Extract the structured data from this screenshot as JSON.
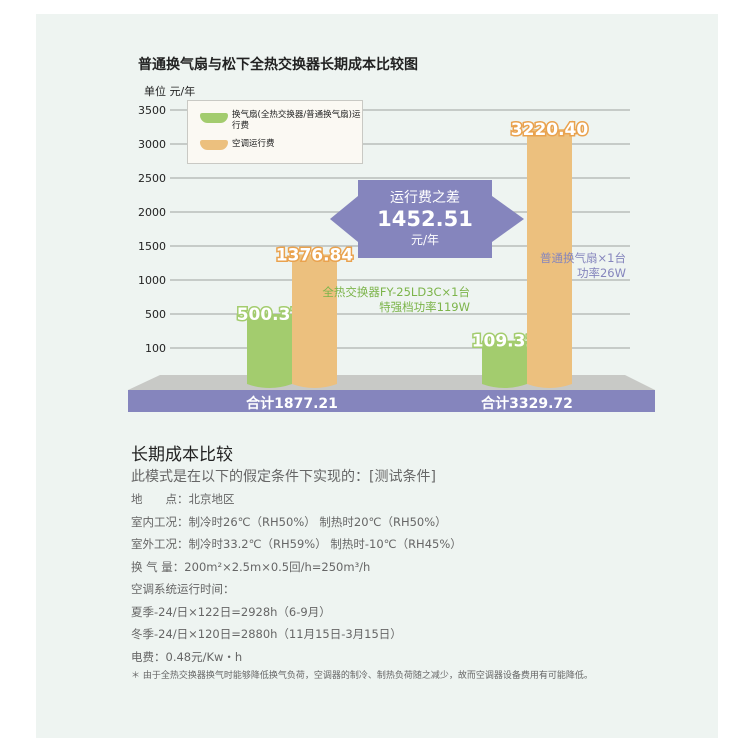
{
  "chart_data": {
    "type": "bar",
    "title": "普通换气扇与松下全热交换器长期成本比较图",
    "ylabel": "单位 元/年",
    "ytick_labels": [
      "3500",
      "3000",
      "2500",
      "2000",
      "1500",
      "1000",
      "500",
      "100"
    ],
    "ylim": [
      0,
      3500
    ],
    "grid": true,
    "legend_placement": "top-left",
    "legend": [
      "换气扇(全热交换器/普通换气扇)运行费",
      "空调运行费"
    ],
    "colors": {
      "fan": "#a3cc6e",
      "ac": "#ecc07e",
      "band": "#8585bd"
    },
    "groups": [
      {
        "fan": 500.37,
        "ac": 1376.84,
        "fan_label": "500.37",
        "ac_label": "1376.84",
        "total": "合计1877.21",
        "note": [
          "全热交换器FY-25LD3C×1台",
          "特强档功率119W"
        ]
      },
      {
        "fan": 109.32,
        "ac": 3220.4,
        "fan_label": "109.32",
        "ac_label": "3220.40",
        "total": "合计3329.72",
        "note": [
          "普通换气扇×1台",
          "功率26W"
        ]
      }
    ],
    "difference": {
      "label": "运行费之差",
      "value": "1452.51",
      "unit": "元/年"
    }
  },
  "text": {
    "section_title": "长期成本比较",
    "subtitle": "此模式是在以下的假定条件下实现的：[测试条件]",
    "conditions": [
      "地　　点：北京地区",
      "室内工况：制冷时26℃（RH50%） 制热时20℃（RH50%）",
      "室外工况：制冷时33.2℃（RH59%） 制热时-10℃（RH45%）",
      "换 气 量：200m²×2.5m×0.5回/h=250m³/h",
      "空调系统运行时间：",
      "夏季-24/日×122日=2928h（6-9月）",
      "冬季-24/日×120日=2880h（11月15日-3月15日）",
      "电费：0.48元/Kw・h"
    ],
    "footnote": "＊ 由于全热交换器换气时能够降低换气负荷，空调器的制冷、制热负荷随之减少，故而空调器设备费用有可能降低。"
  }
}
